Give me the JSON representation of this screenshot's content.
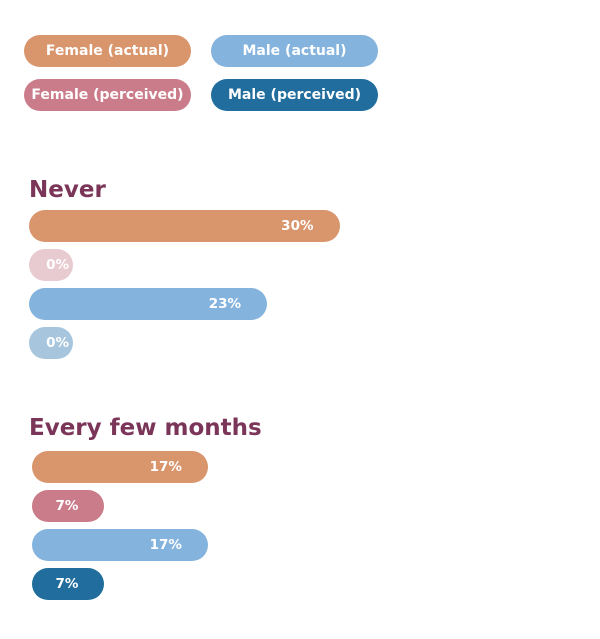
{
  "chart_data": {
    "type": "bar",
    "orientation": "horizontal",
    "legend": [
      {
        "label": "Female (actual)",
        "color": "#d9956c"
      },
      {
        "label": "Male (actual)",
        "color": "#84b3de"
      },
      {
        "label": "Female (perceived)",
        "color": "#cb7c8a"
      },
      {
        "label": "Male (perceived)",
        "color": "#216d9e"
      }
    ],
    "legend_placement": "top-left",
    "groups": [
      {
        "title": "Never",
        "bars": [
          {
            "series": "Female (actual)",
            "value": 30,
            "label": "30%",
            "color": "#d9956c"
          },
          {
            "series": "Female (perceived)",
            "value": 0,
            "label": "0%",
            "color": "#e8cad1"
          },
          {
            "series": "Male (actual)",
            "value": 23,
            "label": "23%",
            "color": "#84b3de"
          },
          {
            "series": "Male (perceived)",
            "value": 0,
            "label": "0%",
            "color": "#a7c6dd"
          }
        ]
      },
      {
        "title": "Every few months",
        "bars": [
          {
            "series": "Female (actual)",
            "value": 17,
            "label": "17%",
            "color": "#d9956c"
          },
          {
            "series": "Female (perceived)",
            "value": 7,
            "label": "7%",
            "color": "#cb7c8a"
          },
          {
            "series": "Male (actual)",
            "value": 17,
            "label": "17%",
            "color": "#84b3de"
          },
          {
            "series": "Male (perceived)",
            "value": 7,
            "label": "7%",
            "color": "#216d9e"
          }
        ]
      }
    ],
    "grid": false
  }
}
